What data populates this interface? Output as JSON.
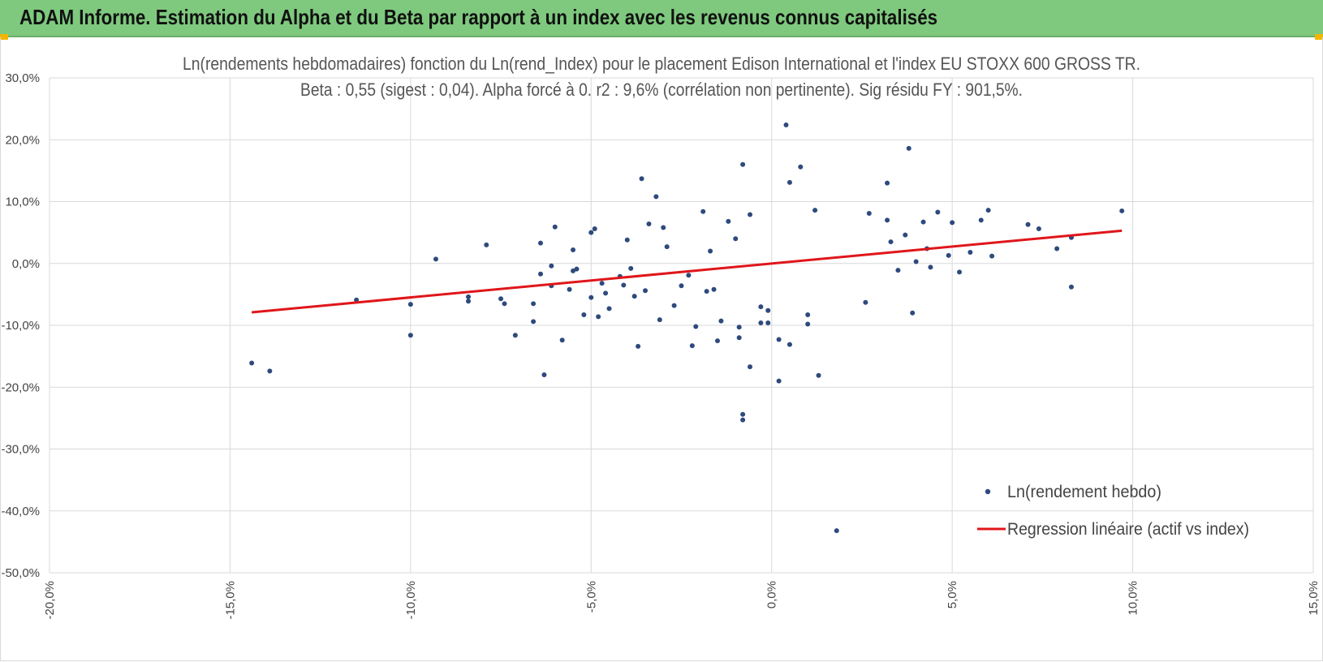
{
  "header": {
    "title": "ADAM Informe. Estimation du Alpha et du Beta par rapport à un index avec les revenus connus capitalisés",
    "background": "#7ec97e"
  },
  "chart_data": {
    "type": "scatter",
    "title": "Ln(rendements hebdomadaires) fonction du Ln(rend_Index) pour le placement Edison International et l'index EU STOXX 600 GROSS TR.",
    "subtitle": "Beta : 0,55 (sigest : 0,04).  Alpha forcé à 0. r2 : 9,6% (corrélation non pertinente). Sig résidu FY : 901,5%.",
    "xlim": [
      -20,
      15
    ],
    "ylim": [
      -50,
      30
    ],
    "x_ticks": [
      "-20,0%",
      "-15,0%",
      "-10,0%",
      "-5,0%",
      "0,0%",
      "5,0%",
      "10,0%",
      "15,0%"
    ],
    "y_ticks": [
      "30,0%",
      "20,0%",
      "10,0%",
      "0,0%",
      "-10,0%",
      "-20,0%",
      "-30,0%",
      "-40,0%",
      "-50,0%"
    ],
    "grid": true,
    "legend_position": "bottom-right",
    "series": [
      {
        "name": "Ln(rendement hebdo)",
        "kind": "scatter",
        "color": "#2e4a7d",
        "points": [
          [
            -14.4,
            -16.1
          ],
          [
            -13.9,
            -17.4
          ],
          [
            -11.5,
            -5.9
          ],
          [
            -10.0,
            -6.6
          ],
          [
            -10.0,
            -11.6
          ],
          [
            -9.3,
            0.7
          ],
          [
            -8.4,
            -6.1
          ],
          [
            -8.4,
            -5.4
          ],
          [
            -7.5,
            -5.7
          ],
          [
            -7.4,
            -6.5
          ],
          [
            -7.1,
            -11.6
          ],
          [
            -6.6,
            -6.5
          ],
          [
            -6.6,
            -9.4
          ],
          [
            -6.4,
            3.3
          ],
          [
            -6.3,
            -18.0
          ],
          [
            -6.4,
            -1.7
          ],
          [
            -6.1,
            -3.6
          ],
          [
            -6.0,
            5.9
          ],
          [
            -6.1,
            -0.4
          ],
          [
            -5.8,
            -12.4
          ],
          [
            -5.6,
            -4.2
          ],
          [
            -5.5,
            -1.2
          ],
          [
            -5.5,
            2.2
          ],
          [
            -5.4,
            -0.9
          ],
          [
            -5.2,
            -8.3
          ],
          [
            -5.0,
            5.0
          ],
          [
            -4.9,
            5.6
          ],
          [
            -4.8,
            -8.6
          ],
          [
            -4.7,
            -3.2
          ],
          [
            -4.6,
            -4.8
          ],
          [
            -4.5,
            -7.3
          ],
          [
            -4.2,
            -2.1
          ],
          [
            -4.1,
            -3.5
          ],
          [
            -4.0,
            3.8
          ],
          [
            -3.8,
            -5.3
          ],
          [
            -3.7,
            -13.4
          ],
          [
            -3.6,
            13.7
          ],
          [
            -3.5,
            -4.4
          ],
          [
            -3.4,
            6.4
          ],
          [
            -3.2,
            10.8
          ],
          [
            -3.1,
            -9.1
          ],
          [
            -3.0,
            5.8
          ],
          [
            -2.7,
            -6.8
          ],
          [
            -2.5,
            -3.6
          ],
          [
            -2.2,
            -13.3
          ],
          [
            -2.1,
            -10.2
          ],
          [
            -1.9,
            8.4
          ],
          [
            -1.8,
            -4.5
          ],
          [
            -1.6,
            -4.2
          ],
          [
            -1.5,
            -12.5
          ],
          [
            -1.4,
            -9.3
          ],
          [
            -1.2,
            6.8
          ],
          [
            -1.0,
            4.0
          ],
          [
            -0.9,
            -12.0
          ],
          [
            -0.9,
            -10.3
          ],
          [
            -0.8,
            16.0
          ],
          [
            -0.8,
            -24.4
          ],
          [
            -0.8,
            -25.3
          ],
          [
            -0.6,
            -16.7
          ],
          [
            -0.6,
            7.9
          ],
          [
            -0.3,
            -7.0
          ],
          [
            -0.3,
            -9.6
          ],
          [
            -0.1,
            -9.6
          ],
          [
            -0.1,
            -7.6
          ],
          [
            0.2,
            -12.3
          ],
          [
            0.2,
            -19.0
          ],
          [
            0.4,
            22.4
          ],
          [
            0.5,
            13.1
          ],
          [
            0.5,
            -13.1
          ],
          [
            0.8,
            15.6
          ],
          [
            1.0,
            -8.3
          ],
          [
            1.0,
            -9.8
          ],
          [
            1.2,
            8.6
          ],
          [
            1.3,
            -18.1
          ],
          [
            1.8,
            -43.2
          ],
          [
            2.6,
            -6.3
          ],
          [
            2.7,
            8.1
          ],
          [
            3.2,
            13.0
          ],
          [
            3.2,
            7.0
          ],
          [
            3.8,
            18.6
          ],
          [
            3.9,
            -8.0
          ],
          [
            4.2,
            6.7
          ],
          [
            4.6,
            8.3
          ],
          [
            5.0,
            6.6
          ],
          [
            5.2,
            -1.4
          ],
          [
            5.8,
            7.0
          ],
          [
            6.0,
            8.6
          ],
          [
            6.1,
            1.2
          ],
          [
            7.1,
            6.3
          ],
          [
            7.9,
            2.4
          ],
          [
            8.3,
            -3.8
          ],
          [
            9.7,
            8.5
          ],
          [
            8.3,
            4.2
          ],
          [
            7.4,
            5.6
          ],
          [
            5.5,
            1.8
          ],
          [
            4.9,
            1.3
          ],
          [
            4.4,
            -0.6
          ],
          [
            4.3,
            2.4
          ],
          [
            4.0,
            0.3
          ],
          [
            3.7,
            4.6
          ],
          [
            3.5,
            -1.1
          ],
          [
            3.3,
            3.5
          ],
          [
            -7.9,
            3.0
          ],
          [
            -5.0,
            -5.5
          ],
          [
            -3.9,
            -0.8
          ],
          [
            -2.9,
            2.7
          ],
          [
            -2.3,
            -1.9
          ],
          [
            -1.7,
            2.0
          ]
        ]
      },
      {
        "name": "Regression linéaire (actif vs index)",
        "kind": "line",
        "color": "#e0161a",
        "points": [
          [
            -14.4,
            -7.9
          ],
          [
            9.7,
            5.3
          ]
        ]
      }
    ]
  }
}
